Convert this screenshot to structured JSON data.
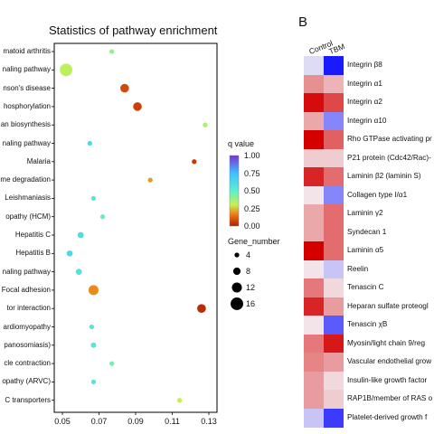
{
  "panelA": {
    "chart_data": {
      "type": "scatter",
      "title": "Statistics of pathway enrichment",
      "xlabel": "Rich factor",
      "xlim": [
        0.05,
        0.13
      ],
      "xticks": [
        "0.05",
        "0.07",
        "0.09",
        "0.11",
        "0.13"
      ],
      "grid": false,
      "pathways": [
        {
          "label": "matoid arthritis",
          "rich_factor": 0.077,
          "qvalue": 0.4,
          "gene_number": 4
        },
        {
          "label": "naling pathway",
          "rich_factor": 0.052,
          "qvalue": 0.32,
          "gene_number": 16
        },
        {
          "label": "nson's disease",
          "rich_factor": 0.084,
          "qvalue": 0.08,
          "gene_number": 10
        },
        {
          "label": "hosphorylation",
          "rich_factor": 0.091,
          "qvalue": 0.06,
          "gene_number": 10
        },
        {
          "label": "an biosynthesis",
          "rich_factor": 0.128,
          "qvalue": 0.35,
          "gene_number": 4
        },
        {
          "label": "naling pathway",
          "rich_factor": 0.065,
          "qvalue": 0.62,
          "gene_number": 4
        },
        {
          "label": "Malaria",
          "rich_factor": 0.122,
          "qvalue": 0.05,
          "gene_number": 4
        },
        {
          "label": "me degradation",
          "rich_factor": 0.098,
          "qvalue": 0.2,
          "gene_number": 4
        },
        {
          "label": "Leishmaniasis",
          "rich_factor": 0.067,
          "qvalue": 0.55,
          "gene_number": 4
        },
        {
          "label": "opathy (HCM)",
          "rich_factor": 0.072,
          "qvalue": 0.5,
          "gene_number": 4
        },
        {
          "label": "Hepatitis C",
          "rich_factor": 0.06,
          "qvalue": 0.6,
          "gene_number": 6
        },
        {
          "label": "Hepatitis B",
          "rich_factor": 0.054,
          "qvalue": 0.62,
          "gene_number": 6
        },
        {
          "label": "naling pathway",
          "rich_factor": 0.059,
          "qvalue": 0.58,
          "gene_number": 6
        },
        {
          "label": "Focal adhesion",
          "rich_factor": 0.067,
          "qvalue": 0.18,
          "gene_number": 12
        },
        {
          "label": "tor interaction",
          "rich_factor": 0.126,
          "qvalue": 0.02,
          "gene_number": 10
        },
        {
          "label": "ardiomyopathy",
          "rich_factor": 0.066,
          "qvalue": 0.55,
          "gene_number": 4
        },
        {
          "label": "panosomiasis)",
          "rich_factor": 0.067,
          "qvalue": 0.55,
          "gene_number": 5
        },
        {
          "label": "cle contraction",
          "rich_factor": 0.077,
          "qvalue": 0.45,
          "gene_number": 4
        },
        {
          "label": "opathy (ARVC)",
          "rich_factor": 0.067,
          "qvalue": 0.55,
          "gene_number": 4
        },
        {
          "label": "C transporters",
          "rich_factor": 0.114,
          "qvalue": 0.3,
          "gene_number": 4
        }
      ],
      "legend_color": {
        "title": "q value",
        "ticks": [
          "1.00",
          "0.75",
          "0.50",
          "0.25",
          "0.00"
        ]
      },
      "legend_size": {
        "title": "Gene_number",
        "entries": [
          "4",
          "8",
          "12",
          "16"
        ],
        "values": [
          4,
          8,
          12,
          16
        ]
      }
    },
    "colors": {
      "q_high": "#7b2fd6",
      "q_mid_high": "#3fc0ff",
      "q_mid": "#5af0d0",
      "q_mid_low": "#c8f050",
      "q_low": "#b02000"
    }
  },
  "panelB": {
    "letter": "B",
    "columns": [
      "Control",
      "TBM"
    ],
    "chart_data": {
      "type": "heatmap",
      "columns": [
        "Control",
        "TBM"
      ],
      "rows": [
        {
          "label": "Integrin β8",
          "values": [
            0.1,
            1.0
          ]
        },
        {
          "label": "Integrin α1",
          "values": [
            -0.4,
            -0.25
          ]
        },
        {
          "label": "Integrin α2",
          "values": [
            -0.95,
            -0.7
          ]
        },
        {
          "label": "Integrin α10",
          "values": [
            -0.3,
            0.5
          ]
        },
        {
          "label": "Rho GTPase activating pr",
          "values": [
            -1.0,
            -0.6
          ]
        },
        {
          "label": "P21 protein (Cdc42/Rac)-",
          "values": [
            -0.15,
            -0.15
          ]
        },
        {
          "label": "Laminin β2 (laminin S)",
          "values": [
            -0.85,
            -0.55
          ]
        },
        {
          "label": "Collagen type I/α1",
          "values": [
            -0.05,
            0.5
          ]
        },
        {
          "label": "Laminin γ2",
          "values": [
            -0.3,
            -0.55
          ]
        },
        {
          "label": "Syndecan 1",
          "values": [
            -0.3,
            -0.55
          ]
        },
        {
          "label": "Laminin α5",
          "values": [
            -1.0,
            -0.55
          ]
        },
        {
          "label": "Reelin",
          "values": [
            -0.05,
            0.2
          ]
        },
        {
          "label": "Tenascin C",
          "values": [
            -0.5,
            -0.1
          ]
        },
        {
          "label": "Heparan sulfate proteogl",
          "values": [
            -0.85,
            -0.35
          ]
        },
        {
          "label": "Tenascin χB",
          "values": [
            -0.05,
            0.7
          ]
        },
        {
          "label": "Myosin/light chain 9/reg",
          "values": [
            -0.5,
            -0.9
          ]
        },
        {
          "label": "Vascular endothelial grow",
          "values": [
            -0.45,
            -0.35
          ]
        },
        {
          "label": "Insulin-like growth factor",
          "values": [
            -0.35,
            -0.1
          ]
        },
        {
          "label": "RAP1B/member of RAS o",
          "values": [
            -0.35,
            -0.15
          ]
        },
        {
          "label": "Platelet-derived growth f",
          "values": [
            0.2,
            0.85
          ]
        }
      ]
    },
    "colors": {
      "high": "#1a1aff",
      "mid": "#f4f0f4",
      "low": "#d40000"
    }
  }
}
